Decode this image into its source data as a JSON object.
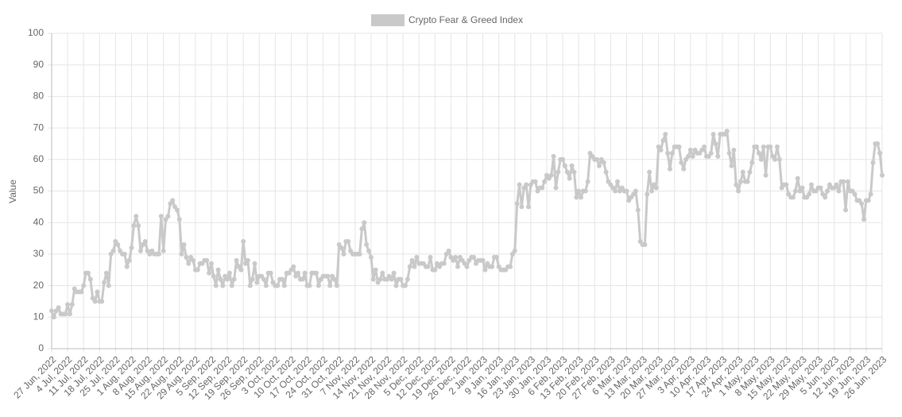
{
  "chart_data": {
    "type": "line",
    "ylabel": "Value",
    "ylim": [
      0,
      100
    ],
    "yticks": [
      0,
      10,
      20,
      30,
      40,
      50,
      60,
      70,
      80,
      90,
      100
    ],
    "grid": true,
    "legend": "top",
    "categories": [
      "27 Jun, 2022",
      null,
      null,
      null,
      null,
      null,
      null,
      "4 Jul, 2022",
      null,
      null,
      null,
      null,
      null,
      null,
      "11 Jul, 2022",
      null,
      null,
      null,
      null,
      null,
      null,
      "18 Jul, 2022",
      null,
      null,
      null,
      null,
      null,
      null,
      "25 Jul, 2022",
      null,
      null,
      null,
      null,
      null,
      null,
      "1 Aug, 2022",
      null,
      null,
      null,
      null,
      null,
      null,
      "8 Aug, 2022",
      null,
      null,
      null,
      null,
      null,
      null,
      "15 Aug, 2022",
      null,
      null,
      null,
      null,
      null,
      null,
      "22 Aug, 2022",
      null,
      null,
      null,
      null,
      null,
      null,
      "29 Aug, 2022",
      null,
      null,
      null,
      null,
      null,
      null,
      "5 Sep, 2022",
      null,
      null,
      null,
      null,
      null,
      null,
      "12 Sep, 2022",
      null,
      null,
      null,
      null,
      null,
      null,
      "19 Sep, 2022",
      null,
      null,
      null,
      null,
      null,
      null,
      "26 Sep, 2022",
      null,
      null,
      null,
      null,
      null,
      null,
      "3 Oct, 2022",
      null,
      null,
      null,
      null,
      null,
      null,
      "10 Oct, 2022",
      null,
      null,
      null,
      null,
      null,
      null,
      "17 Oct, 2022",
      null,
      null,
      null,
      null,
      null,
      null,
      "24 Oct, 2022",
      null,
      null,
      null,
      null,
      null,
      null,
      "31 Oct, 2022",
      null,
      null,
      null,
      null,
      null,
      null,
      "7 Nov, 2022",
      null,
      null,
      null,
      null,
      null,
      null,
      "14 Nov, 2022",
      null,
      null,
      null,
      null,
      null,
      null,
      "21 Nov, 2022",
      null,
      null,
      null,
      null,
      null,
      null,
      "28 Nov, 2022",
      null,
      null,
      null,
      null,
      null,
      null,
      "5 Dec, 2022",
      null,
      null,
      null,
      null,
      null,
      null,
      "12 Dec, 2022",
      null,
      null,
      null,
      null,
      null,
      null,
      "19 Dec, 2022",
      null,
      null,
      null,
      null,
      null,
      null,
      "26 Dec, 2022",
      null,
      null,
      null,
      null,
      null,
      null,
      "2 Jan, 2023",
      null,
      null,
      null,
      null,
      null,
      null,
      "9 Jan, 2023",
      null,
      null,
      null,
      null,
      null,
      null,
      "16 Jan, 2023",
      null,
      null,
      null,
      null,
      null,
      null,
      "23 Jan, 2023",
      null,
      null,
      null,
      null,
      null,
      null,
      "30 Jan, 2023",
      null,
      null,
      null,
      null,
      null,
      null,
      "6 Feb, 2023",
      null,
      null,
      null,
      null,
      null,
      null,
      "13 Feb, 2023",
      null,
      null,
      null,
      null,
      null,
      null,
      "20 Feb, 2023",
      null,
      null,
      null,
      null,
      null,
      null,
      "27 Feb, 2023",
      null,
      null,
      null,
      null,
      null,
      null,
      "6 Mar, 2023",
      null,
      null,
      null,
      null,
      null,
      null,
      "13 Mar, 2023",
      null,
      null,
      null,
      null,
      null,
      null,
      "20 Mar, 2023",
      null,
      null,
      null,
      null,
      null,
      null,
      "27 Mar, 2023",
      null,
      null,
      null,
      null,
      null,
      null,
      "3 Apr, 2023",
      null,
      null,
      null,
      null,
      null,
      null,
      "10 Apr, 2023",
      null,
      null,
      null,
      null,
      null,
      null,
      "17 Apr, 2023",
      null,
      null,
      null,
      null,
      null,
      null,
      "24 Apr, 2023",
      null,
      null,
      null,
      null,
      null,
      null,
      "1 May, 2023",
      null,
      null,
      null,
      null,
      null,
      null,
      "8 May, 2023",
      null,
      null,
      null,
      null,
      null,
      null,
      "15 May, 2023",
      null,
      null,
      null,
      null,
      null,
      null,
      "22 May, 2023",
      null,
      null,
      null,
      null,
      null,
      null,
      "29 May, 2023",
      null,
      null,
      null,
      null,
      null,
      null,
      "5 Jun, 2023",
      null,
      null,
      null,
      null,
      null,
      null,
      "12 Jun, 2023",
      null,
      null,
      null,
      null,
      null,
      null,
      "19 Jun, 2023",
      null,
      null,
      null,
      null,
      null,
      null,
      "26 Jun, 2023"
    ],
    "series": [
      {
        "name": "Crypto Fear & Greed Index",
        "color": "#c9c9c9",
        "values": [
          12,
          10,
          12,
          13,
          11,
          11,
          11,
          14,
          11,
          14,
          19,
          18,
          18,
          18,
          20,
          24,
          24,
          22,
          16,
          15,
          18,
          15,
          15,
          21,
          24,
          20,
          30,
          31,
          34,
          33,
          31,
          30,
          30,
          26,
          28,
          32,
          39,
          42,
          39,
          31,
          33,
          34,
          31,
          30,
          31,
          30,
          30,
          30,
          42,
          31,
          41,
          42,
          46,
          47,
          45,
          44,
          41,
          30,
          33,
          29,
          27,
          29,
          28,
          25,
          25,
          27,
          27,
          28,
          28,
          24,
          27,
          23,
          20,
          25,
          22,
          20,
          23,
          22,
          24,
          20,
          22,
          28,
          26,
          25,
          34,
          27,
          28,
          20,
          22,
          27,
          21,
          23,
          23,
          22,
          20,
          24,
          24,
          21,
          20,
          20,
          22,
          22,
          20,
          24,
          24,
          25,
          26,
          23,
          24,
          22,
          22,
          24,
          20,
          20,
          24,
          24,
          24,
          20,
          22,
          23,
          23,
          23,
          20,
          23,
          22,
          20,
          33,
          32,
          30,
          34,
          34,
          31,
          30,
          30,
          30,
          30,
          38,
          40,
          33,
          31,
          29,
          22,
          25,
          21,
          22,
          24,
          22,
          22,
          23,
          22,
          24,
          20,
          22,
          22,
          20,
          20,
          22,
          26,
          28,
          26,
          29,
          27,
          27,
          27,
          26,
          26,
          29,
          25,
          25,
          27,
          26,
          27,
          27,
          30,
          31,
          29,
          28,
          29,
          26,
          29,
          28,
          27,
          26,
          28,
          29,
          29,
          27,
          28,
          28,
          28,
          25,
          27,
          26,
          26,
          29,
          29,
          26,
          25,
          25,
          25,
          26,
          26,
          30,
          31,
          46,
          52,
          45,
          51,
          52,
          45,
          52,
          53,
          53,
          50,
          51,
          51,
          53,
          55,
          54,
          55,
          61,
          51,
          56,
          60,
          60,
          58,
          56,
          54,
          58,
          56,
          48,
          50,
          48,
          50,
          50,
          53,
          62,
          61,
          60,
          60,
          58,
          60,
          59,
          56,
          53,
          52,
          51,
          50,
          53,
          50,
          51,
          50,
          50,
          47,
          48,
          49,
          50,
          44,
          34,
          33,
          33,
          49,
          56,
          50,
          52,
          51,
          64,
          63,
          66,
          68,
          62,
          57,
          62,
          64,
          64,
          64,
          59,
          57,
          60,
          61,
          63,
          61,
          63,
          62,
          62,
          63,
          64,
          61,
          61,
          62,
          68,
          65,
          61,
          68,
          68,
          68,
          69,
          62,
          58,
          63,
          52,
          50,
          53,
          56,
          53,
          53,
          56,
          59,
          64,
          64,
          62,
          60,
          64,
          55,
          64,
          64,
          61,
          60,
          64,
          60,
          51,
          52,
          52,
          49,
          48,
          48,
          50,
          54,
          50,
          51,
          48,
          48,
          49,
          52,
          50,
          50,
          51,
          51,
          49,
          48,
          50,
          52,
          51,
          51,
          52,
          50,
          53,
          53,
          44,
          53,
          50,
          50,
          49,
          47,
          47,
          46,
          41,
          47,
          47,
          49,
          59,
          65,
          65,
          62,
          55
        ]
      }
    ]
  }
}
